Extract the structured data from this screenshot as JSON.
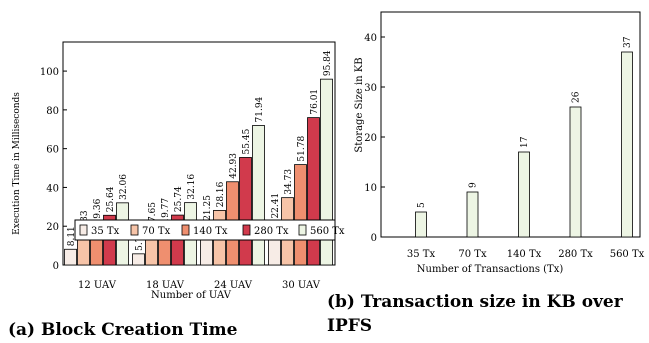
{
  "chart_data": [
    {
      "type": "bar",
      "caption": "(a) Block Creation Time",
      "xlabel": "Number of UAV",
      "ylabel": "Execution Time in Milliseconds",
      "ylim": [
        0,
        115
      ],
      "yticks": [
        0,
        20,
        40,
        60,
        80,
        100
      ],
      "categories": [
        "12 UAV",
        "18 UAV",
        "24 UAV",
        "30 UAV"
      ],
      "legend_position": "center",
      "grid": false,
      "series": [
        {
          "name": "35 Tx",
          "color": "#f7ece6",
          "values": [
            8.11,
            5.76,
            21.25,
            22.41
          ],
          "labels": [
            "8.11",
            "5.76",
            "21.25",
            "22.41"
          ]
        },
        {
          "name": "70 Tx",
          "color": "#f7c4a8",
          "values": [
            13.33,
            17.65,
            28.16,
            34.73
          ],
          "labels": [
            "13.33",
            "17.65",
            "28.16",
            "34.73"
          ]
        },
        {
          "name": "140 Tx",
          "color": "#ef8f6f",
          "values": [
            19.36,
            19.77,
            42.93,
            51.78
          ],
          "labels": [
            "19.36",
            "19.77",
            "42.93",
            "51.78"
          ]
        },
        {
          "name": "280 Tx",
          "color": "#d13a4c",
          "values": [
            25.64,
            25.74,
            55.45,
            76.01
          ],
          "labels": [
            "25.64",
            "25.74",
            "55.45",
            "76.01"
          ]
        },
        {
          "name": "560 Tx",
          "color": "#edf5e4",
          "values": [
            32.06,
            32.16,
            71.94,
            95.84
          ],
          "labels": [
            "32.06",
            "32.16",
            "71.94",
            "95.84"
          ]
        }
      ]
    },
    {
      "type": "bar",
      "caption": "(b) Transaction size in KB over IPFS",
      "xlabel": "Number of Transactions (Tx)",
      "ylabel": "Storage Size in KB",
      "ylim": [
        0,
        45
      ],
      "yticks": [
        0,
        10,
        20,
        30,
        40
      ],
      "grid": false,
      "categories": [
        "35 Tx",
        "70 Tx",
        "140 Tx",
        "280 Tx",
        "560 Tx"
      ],
      "series": [
        {
          "color": "#edf5e4",
          "values": [
            5,
            9,
            17,
            26,
            37
          ],
          "labels": [
            "5",
            "9",
            "17",
            "26",
            "37"
          ]
        }
      ]
    }
  ]
}
